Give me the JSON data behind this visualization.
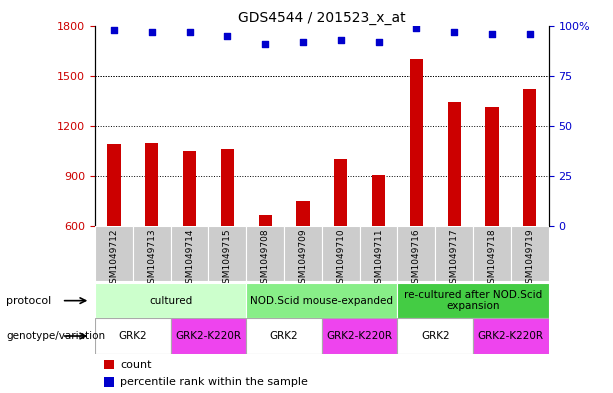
{
  "title": "GDS4544 / 201523_x_at",
  "samples": [
    "GSM1049712",
    "GSM1049713",
    "GSM1049714",
    "GSM1049715",
    "GSM1049708",
    "GSM1049709",
    "GSM1049710",
    "GSM1049711",
    "GSM1049716",
    "GSM1049717",
    "GSM1049718",
    "GSM1049719"
  ],
  "counts": [
    1090,
    1095,
    1050,
    1060,
    665,
    750,
    1000,
    905,
    1600,
    1340,
    1310,
    1420
  ],
  "percentile_ranks": [
    98,
    97,
    97,
    95,
    91,
    92,
    93,
    92,
    99,
    97,
    96,
    96
  ],
  "bar_color": "#cc0000",
  "dot_color": "#0000cc",
  "ylim_left": [
    600,
    1800
  ],
  "ylim_right": [
    0,
    100
  ],
  "yticks_left": [
    600,
    900,
    1200,
    1500,
    1800
  ],
  "yticks_right": [
    0,
    25,
    50,
    75,
    100
  ],
  "protocol_groups": [
    {
      "label": "cultured",
      "start": 0,
      "end": 4,
      "color": "#ccffcc"
    },
    {
      "label": "NOD.Scid mouse-expanded",
      "start": 4,
      "end": 8,
      "color": "#88ee88"
    },
    {
      "label": "re-cultured after NOD.Scid\nexpansion",
      "start": 8,
      "end": 12,
      "color": "#44cc44"
    }
  ],
  "genotype_groups": [
    {
      "label": "GRK2",
      "start": 0,
      "end": 2,
      "color": "#ffffff"
    },
    {
      "label": "GRK2-K220R",
      "start": 2,
      "end": 4,
      "color": "#ee44ee"
    },
    {
      "label": "GRK2",
      "start": 4,
      "end": 6,
      "color": "#ffffff"
    },
    {
      "label": "GRK2-K220R",
      "start": 6,
      "end": 8,
      "color": "#ee44ee"
    },
    {
      "label": "GRK2",
      "start": 8,
      "end": 10,
      "color": "#ffffff"
    },
    {
      "label": "GRK2-K220R",
      "start": 10,
      "end": 12,
      "color": "#ee44ee"
    }
  ],
  "sample_bg_color": "#cccccc",
  "legend_count_color": "#cc0000",
  "legend_dot_color": "#0000cc"
}
